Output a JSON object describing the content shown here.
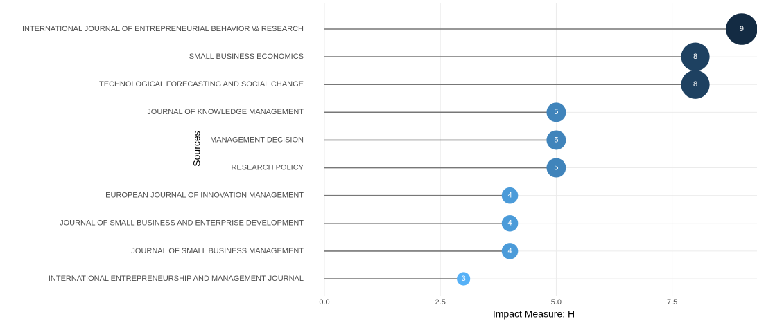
{
  "chart_data": {
    "type": "lollipop",
    "x_label": "Impact Measure: H",
    "y_label": "Sources",
    "categories": [
      "INTERNATIONAL JOURNAL OF ENTREPRENEURIAL BEHAVIOR \\& RESEARCH",
      "SMALL BUSINESS ECONOMICS",
      "TECHNOLOGICAL FORECASTING AND SOCIAL CHANGE",
      "JOURNAL OF KNOWLEDGE MANAGEMENT",
      "MANAGEMENT DECISION",
      "RESEARCH POLICY",
      "EUROPEAN JOURNAL OF INNOVATION MANAGEMENT",
      "JOURNAL OF SMALL BUSINESS AND ENTERPRISE DEVELOPMENT",
      "JOURNAL OF SMALL BUSINESS MANAGEMENT",
      "INTERNATIONAL ENTREPRENEURSHIP AND MANAGEMENT JOURNAL"
    ],
    "values": [
      9,
      8,
      8,
      5,
      5,
      5,
      4,
      4,
      4,
      3
    ],
    "color_low": "#56b1f7",
    "color_high": "#132b43",
    "stem_color": "#777777",
    "xlim": [
      0,
      9.3
    ],
    "xticks": [
      {
        "value": 0,
        "label": "0.0"
      },
      2.5,
      {
        "value": 5,
        "label": "5.0"
      },
      7.5
    ],
    "grid": true
  }
}
